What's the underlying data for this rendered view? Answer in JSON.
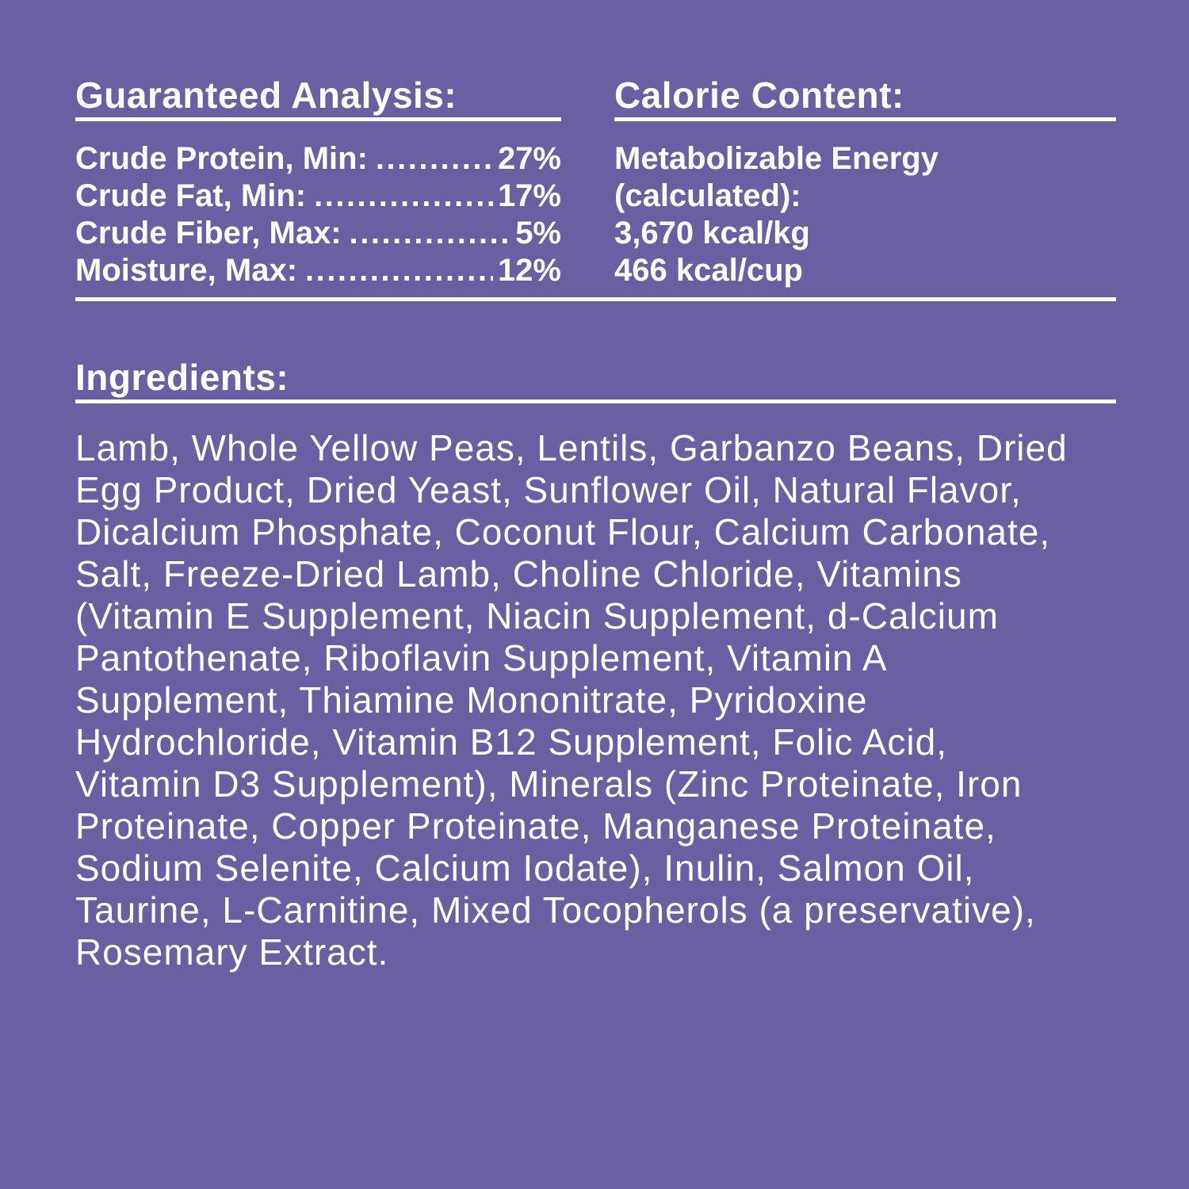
{
  "colors": {
    "background": "#6b5fa4",
    "text": "#ffffff",
    "divider": "#ffffff"
  },
  "guaranteed_analysis": {
    "heading": "Guaranteed Analysis:",
    "rows": [
      {
        "label": "Crude Protein, Min:",
        "leader": "...........",
        "value": "27%"
      },
      {
        "label": "Crude Fat, Min:",
        "leader": "..................",
        "value": "17%"
      },
      {
        "label": "Crude Fiber, Max:",
        "leader": "................",
        "value": "5%"
      },
      {
        "label": "Moisture, Max:",
        "leader": "..................",
        "value": "12%"
      }
    ]
  },
  "calorie_content": {
    "heading": "Calorie Content:",
    "lines": [
      "Metabolizable Energy",
      "(calculated):",
      "3,670 kcal/kg",
      "466 kcal/cup"
    ]
  },
  "ingredients": {
    "heading": "Ingredients:",
    "lines": [
      "Lamb, Whole Yellow Peas, Lentils, Garbanzo Beans, Dried",
      "Egg Product, Dried Yeast, Sunflower Oil, Natural Flavor,",
      "Dicalcium Phosphate, Coconut Flour, Calcium Carbonate,",
      "Salt, Freeze-Dried Lamb, Choline Chloride, Vitamins",
      "(Vitamin E Supplement, Niacin Supplement, d-Calcium",
      "Pantothenate, Riboflavin Supplement, Vitamin A",
      "Supplement, Thiamine Mononitrate, Pyridoxine",
      "Hydrochloride, Vitamin B12 Supplement, Folic Acid,",
      "Vitamin D3 Supplement), Minerals (Zinc Proteinate, Iron",
      "Proteinate, Copper Proteinate, Manganese Proteinate,",
      "Sodium Selenite, Calcium Iodate), Inulin, Salmon Oil,",
      "Taurine, L-Carnitine, Mixed Tocopherols (a preservative),",
      "Rosemary Extract."
    ]
  }
}
